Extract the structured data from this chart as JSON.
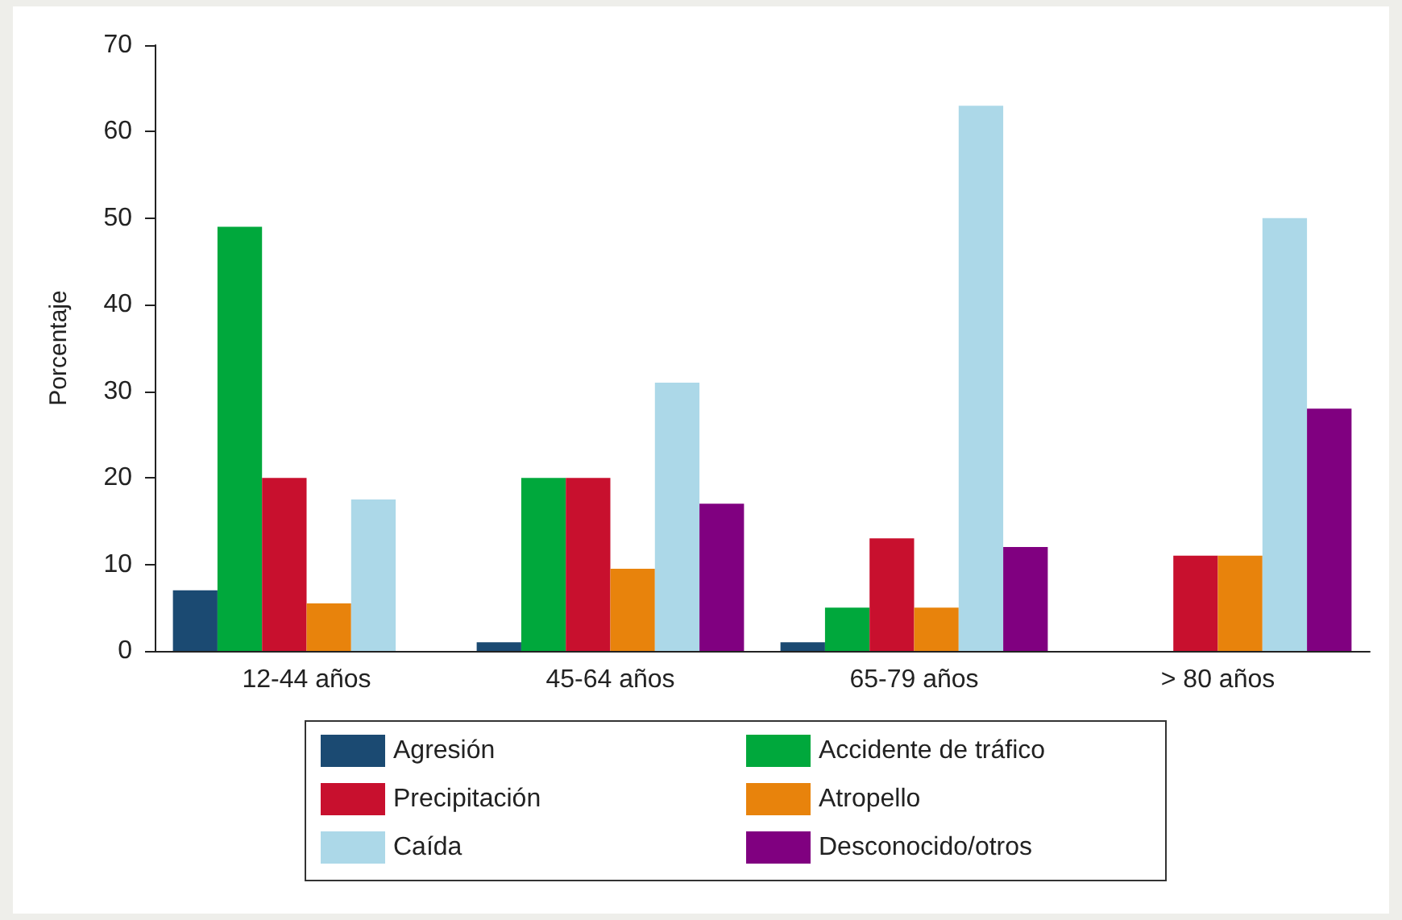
{
  "chart_data": {
    "type": "bar",
    "ylabel": "Porcentaje",
    "categories": [
      "12-44 años",
      "45-64 años",
      "65-79 años",
      "> 80 años"
    ],
    "series": [
      {
        "name": "Agresión",
        "color": "#1b4a72",
        "values": [
          7,
          1,
          1,
          0
        ]
      },
      {
        "name": "Accidente de tráfico",
        "color": "#00a83c",
        "values": [
          49,
          20,
          5,
          0
        ]
      },
      {
        "name": "Precipitación",
        "color": "#c8102e",
        "values": [
          20,
          20,
          13,
          11
        ]
      },
      {
        "name": "Atropello",
        "color": "#e8830c",
        "values": [
          5.5,
          9.5,
          5,
          11
        ]
      },
      {
        "name": "Caída",
        "color": "#acd8e8",
        "values": [
          17.5,
          31,
          63,
          50
        ]
      },
      {
        "name": "Desconocido/otros",
        "color": "#800080",
        "values": [
          0,
          17,
          12,
          28
        ]
      }
    ],
    "ylim": [
      0,
      70
    ],
    "yticks": [
      0,
      10,
      20,
      30,
      40,
      50,
      60,
      70
    ],
    "grid": false,
    "legend": "bottom"
  }
}
